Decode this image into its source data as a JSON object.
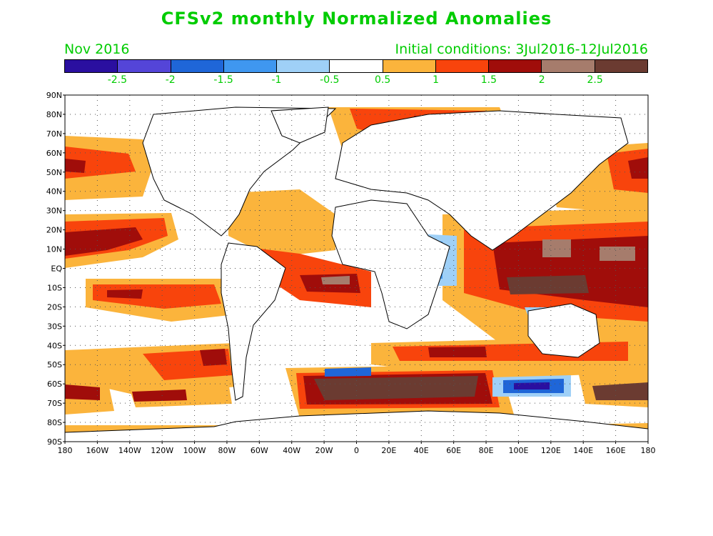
{
  "title": "CFSv2 monthly Normalized Anomalies",
  "valid_month": "Nov 2016",
  "initial_conditions": "Initial conditions: 3Jul2016-12Jul2016",
  "colorbar": {
    "colors": [
      "#2a0fa0",
      "#5445d8",
      "#1f66d8",
      "#3f97f0",
      "#9fd0f7",
      "#ffffff",
      "#fbb43c",
      "#f8440c",
      "#a00d0a",
      "#a67c6c",
      "#6b3b31"
    ],
    "labels": [
      "-2.5",
      "-2",
      "-1.5",
      "-1",
      "-0.5",
      "0.5",
      "1",
      "1.5",
      "2",
      "2.5"
    ]
  },
  "map": {
    "lat_labels": [
      "90N",
      "80N",
      "70N",
      "60N",
      "50N",
      "40N",
      "30N",
      "20N",
      "10N",
      "EQ",
      "10S",
      "20S",
      "30S",
      "40S",
      "50S",
      "60S",
      "70S",
      "80S",
      "90S"
    ],
    "lon_labels": [
      "180",
      "160W",
      "140W",
      "120W",
      "100W",
      "80W",
      "60W",
      "40W",
      "20W",
      "0",
      "20E",
      "40E",
      "60E",
      "80E",
      "100E",
      "120E",
      "140E",
      "160E",
      "180"
    ]
  }
}
